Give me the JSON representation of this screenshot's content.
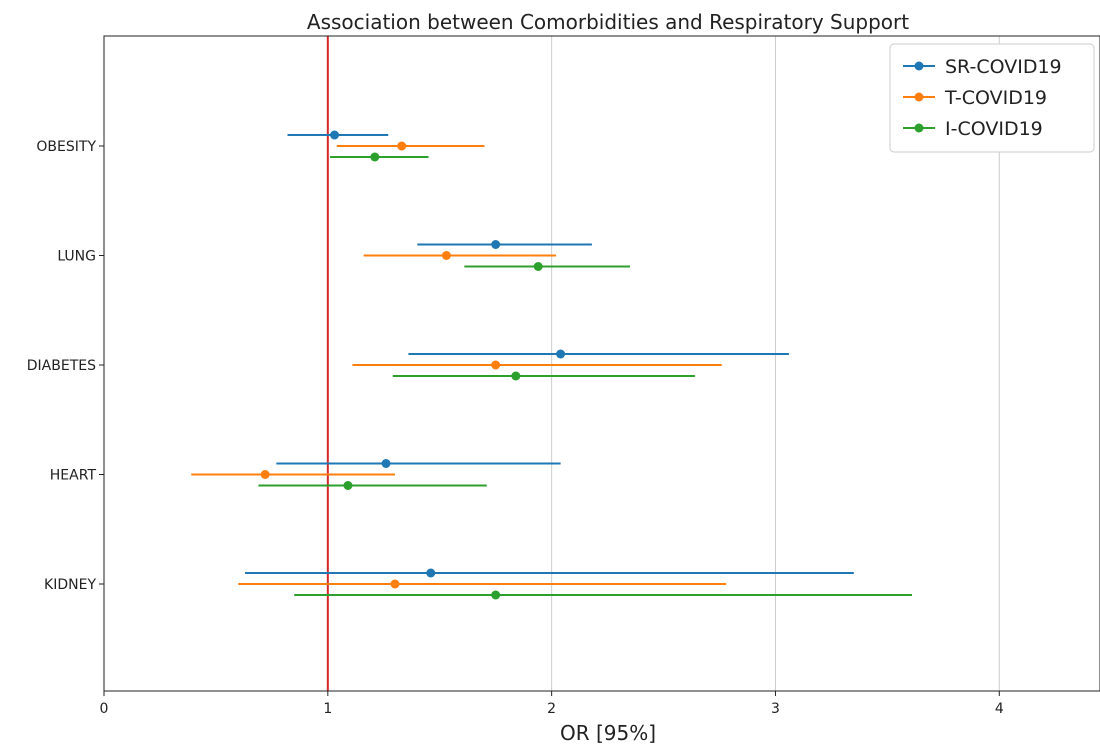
{
  "chart_data": {
    "type": "forest",
    "title": "Association between Comorbidities and Respiratory Support",
    "xlabel": "OR [95%]",
    "xlim": [
      0,
      4.45
    ],
    "xticks": [
      "0",
      "1",
      "2",
      "3",
      "4"
    ],
    "grid": "vertical",
    "legend_position": "top-right",
    "reference_line": {
      "x": 1,
      "color": "#d62728"
    },
    "categories": [
      "OBESITY",
      "LUNG",
      "DIABETES",
      "HEART",
      "KIDNEY"
    ],
    "series": [
      {
        "name": "SR-COVID19",
        "color": "#1f77b4",
        "points": [
          {
            "or": 1.03,
            "low": 0.82,
            "high": 1.27
          },
          {
            "or": 1.75,
            "low": 1.4,
            "high": 2.18
          },
          {
            "or": 2.04,
            "low": 1.36,
            "high": 3.06
          },
          {
            "or": 1.26,
            "low": 0.77,
            "high": 2.04
          },
          {
            "or": 1.46,
            "low": 0.63,
            "high": 3.35
          }
        ]
      },
      {
        "name": "T-COVID19",
        "color": "#ff7f0e",
        "points": [
          {
            "or": 1.33,
            "low": 1.04,
            "high": 1.7
          },
          {
            "or": 1.53,
            "low": 1.16,
            "high": 2.02
          },
          {
            "or": 1.75,
            "low": 1.11,
            "high": 2.76
          },
          {
            "or": 0.72,
            "low": 0.39,
            "high": 1.3
          },
          {
            "or": 1.3,
            "low": 0.6,
            "high": 2.78
          }
        ]
      },
      {
        "name": "I-COVID19",
        "color": "#2ca02c",
        "points": [
          {
            "or": 1.21,
            "low": 1.01,
            "high": 1.45
          },
          {
            "or": 1.94,
            "low": 1.61,
            "high": 2.35
          },
          {
            "or": 1.84,
            "low": 1.29,
            "high": 2.64
          },
          {
            "or": 1.09,
            "low": 0.69,
            "high": 1.71
          },
          {
            "or": 1.75,
            "low": 0.85,
            "high": 3.61
          }
        ]
      }
    ]
  }
}
